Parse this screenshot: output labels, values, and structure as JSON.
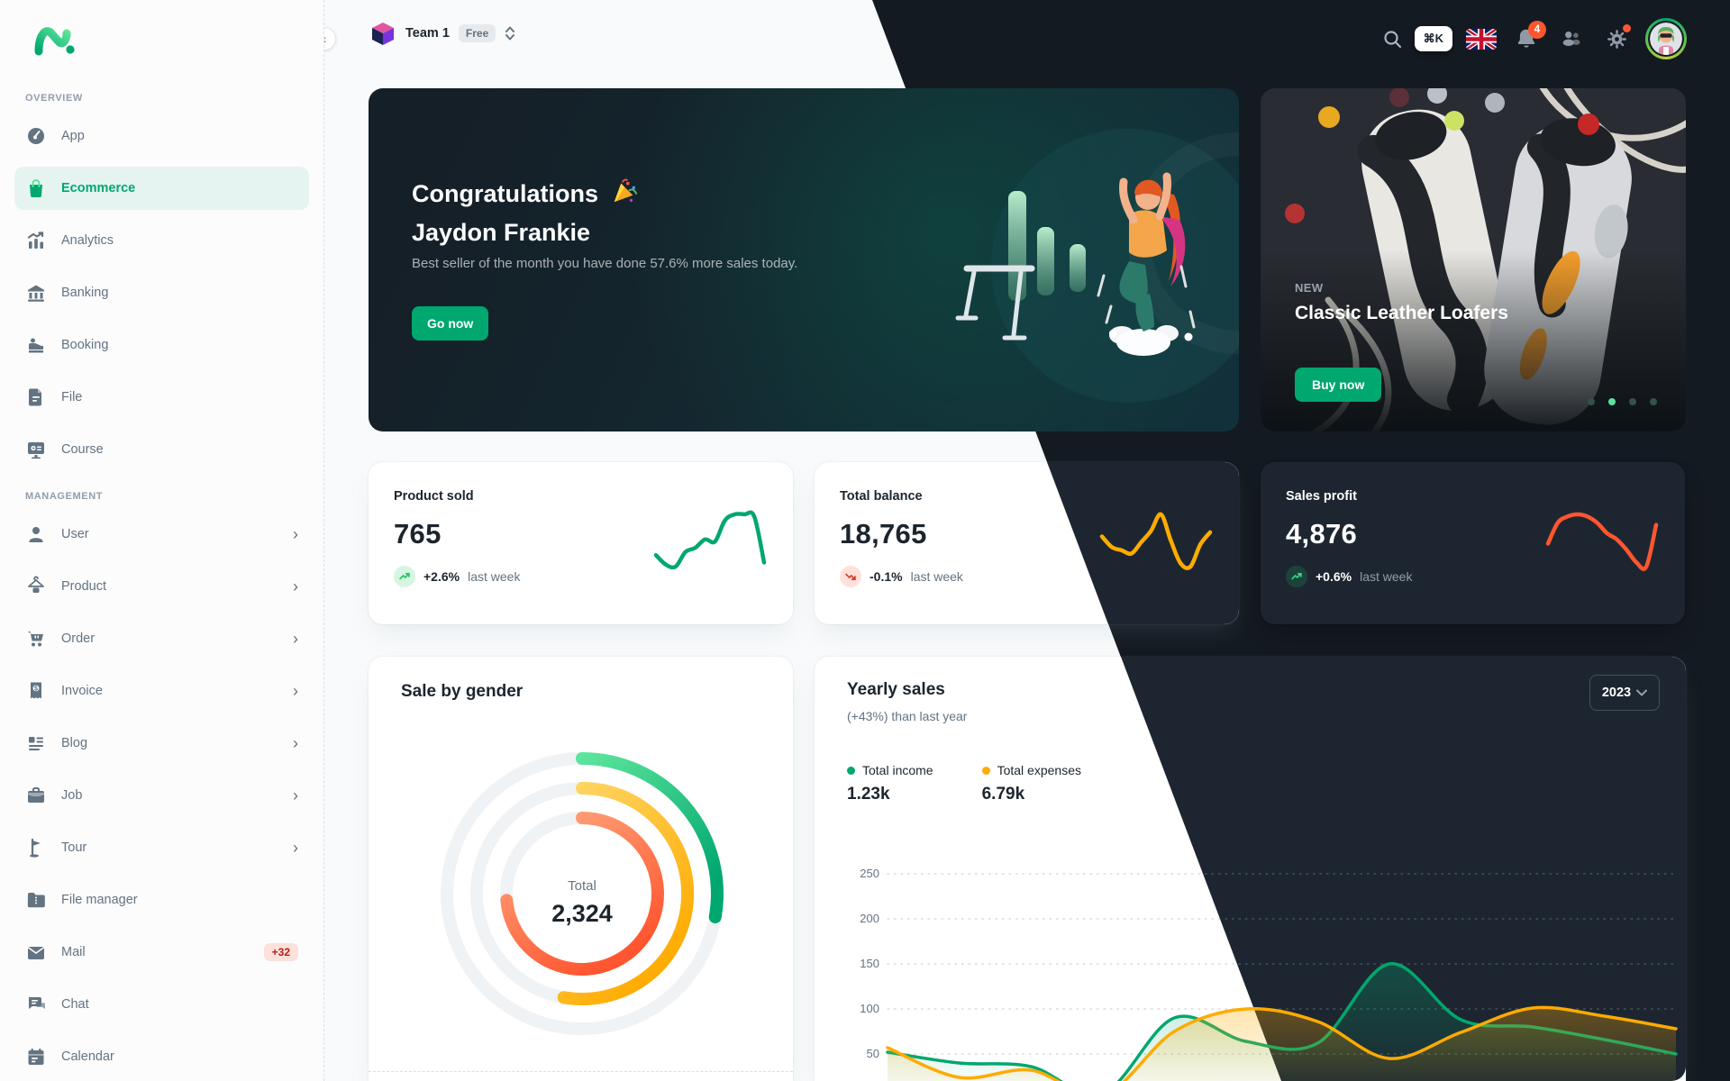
{
  "colors": {
    "primary": "#00a76f",
    "warning": "#ffab00",
    "error": "#ff5630",
    "dark_bg": "#141a21",
    "dark_card": "#1d2630"
  },
  "sidebar": {
    "sections": [
      {
        "label": "OVERVIEW",
        "items": [
          {
            "label": "App",
            "icon": "dashboard"
          },
          {
            "label": "Ecommerce",
            "icon": "shopping-bag",
            "active": true
          },
          {
            "label": "Analytics",
            "icon": "analytics"
          },
          {
            "label": "Banking",
            "icon": "banking"
          },
          {
            "label": "Booking",
            "icon": "booking"
          },
          {
            "label": "File",
            "icon": "file"
          },
          {
            "label": "Course",
            "icon": "course"
          }
        ]
      },
      {
        "label": "MANAGEMENT",
        "items": [
          {
            "label": "User",
            "icon": "user",
            "chevron": true
          },
          {
            "label": "Product",
            "icon": "product",
            "chevron": true
          },
          {
            "label": "Order",
            "icon": "order",
            "chevron": true
          },
          {
            "label": "Invoice",
            "icon": "invoice",
            "chevron": true
          },
          {
            "label": "Blog",
            "icon": "blog",
            "chevron": true
          },
          {
            "label": "Job",
            "icon": "job",
            "chevron": true
          },
          {
            "label": "Tour",
            "icon": "tour",
            "chevron": true
          },
          {
            "label": "File manager",
            "icon": "file-manager"
          },
          {
            "label": "Mail",
            "icon": "mail",
            "badge": "+32"
          },
          {
            "label": "Chat",
            "icon": "chat"
          },
          {
            "label": "Calendar",
            "icon": "calendar"
          }
        ]
      }
    ]
  },
  "topbar": {
    "workspace": {
      "name": "Team 1",
      "plan": "Free"
    },
    "shortcut": "⌘K",
    "notifications_count": "4",
    "icons": [
      "search",
      "command-shortcut",
      "language-flag-uk",
      "notifications-bell",
      "contacts",
      "settings-gear",
      "account-avatar"
    ]
  },
  "congrats": {
    "title_line1": "Congratulations 🎉",
    "title_line2": "Jaydon Frankie",
    "subtitle": "Best seller of the month you have done 57.6% more sales today.",
    "cta": "Go now"
  },
  "featured": {
    "tag": "NEW",
    "title": "Classic Leather Loafers",
    "cta": "Buy now",
    "dot_count": 4,
    "active_dot": 2
  },
  "stats": [
    {
      "title": "Product sold",
      "value": "765",
      "delta": "+2.6%",
      "period": "last week",
      "trend": "up"
    },
    {
      "title": "Total balance",
      "value": "18,765",
      "delta": "-0.1%",
      "period": "last week",
      "trend": "down"
    },
    {
      "title": "Sales profit",
      "value": "4,876",
      "delta": "+0.6%",
      "period": "last week",
      "trend": "up"
    }
  ],
  "gender": {
    "title": "Sale by gender",
    "center_label": "Total",
    "center_value": "2,324"
  },
  "yearly": {
    "title": "Yearly sales",
    "subtitle": "(+43%) than last year",
    "year": "2023",
    "legend": [
      {
        "label": "Total income",
        "value": "1.23k"
      },
      {
        "label": "Total expenses",
        "value": "6.79k"
      }
    ]
  },
  "chart_data": [
    {
      "type": "line",
      "name": "product-sold-sparkline",
      "color": "#00a76f",
      "values": [
        55,
        46,
        44,
        58,
        62,
        70,
        68,
        88,
        94,
        94,
        92,
        48
      ]
    },
    {
      "type": "line",
      "name": "total-balance-sparkline",
      "color": "#ffab00",
      "values": [
        65,
        52,
        48,
        44,
        58,
        72,
        92,
        60,
        32,
        28,
        55,
        70
      ]
    },
    {
      "type": "line",
      "name": "sales-profit-sparkline",
      "color": "#ff5630",
      "values": [
        40,
        60,
        66,
        68,
        66,
        60,
        50,
        44,
        34,
        22,
        18,
        58
      ]
    },
    {
      "type": "radial-bar",
      "name": "sale-by-gender",
      "center_label": "Total",
      "center_value": "2,324",
      "series": [
        {
          "name": "outer",
          "sweep_deg": 100,
          "colors": [
            "#5be49b",
            "#00a76f"
          ]
        },
        {
          "name": "middle",
          "sweep_deg": 190,
          "colors": [
            "#ffd666",
            "#ffab00"
          ]
        },
        {
          "name": "inner",
          "sweep_deg": 265,
          "colors": [
            "#ffac82",
            "#ff5630"
          ]
        }
      ]
    },
    {
      "type": "area",
      "name": "yearly-sales",
      "ylim": [
        0,
        250
      ],
      "yticks": [
        50,
        100,
        150,
        200,
        250
      ],
      "grid": "dotted-horizontal",
      "legend_position": "top-left",
      "series": [
        {
          "name": "Total income",
          "color": "#00a76f",
          "values": [
            52,
            40,
            36,
            6,
            90,
            64,
            62,
            150,
            88,
            80,
            66,
            50
          ]
        },
        {
          "name": "Total expenses",
          "color": "#ffab00",
          "values": [
            57,
            24,
            32,
            4,
            75,
            100,
            86,
            45,
            74,
            101,
            92,
            78
          ]
        }
      ]
    }
  ]
}
